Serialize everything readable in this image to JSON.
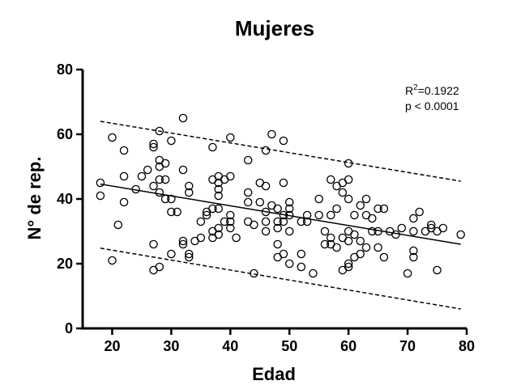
{
  "chart_data": {
    "type": "scatter",
    "title": "Mujeres",
    "xlabel": "Edad",
    "ylabel": "N° de rep.",
    "xlim": [
      15,
      80
    ],
    "ylim": [
      0,
      80
    ],
    "x_ticks": [
      20,
      30,
      40,
      50,
      60,
      70,
      80
    ],
    "y_ticks": [
      0,
      20,
      40,
      60,
      80
    ],
    "grid": false,
    "annotation": {
      "r2_prefix": "R",
      "r2_sup": "2",
      "r2_value": "=0.1922",
      "p_text": "p < 0.0001"
    },
    "regression": {
      "fit": {
        "x": [
          18,
          79
        ],
        "y": [
          44.6,
          26.0
        ]
      },
      "upper_band": {
        "x": [
          18,
          79
        ],
        "y": [
          64.0,
          45.5
        ]
      },
      "lower_band": {
        "x": [
          18,
          79
        ],
        "y": [
          24.8,
          6.0
        ]
      }
    },
    "points": [
      [
        18,
        45
      ],
      [
        18,
        41
      ],
      [
        20,
        59
      ],
      [
        20,
        21
      ],
      [
        21,
        32
      ],
      [
        22,
        55
      ],
      [
        22,
        47
      ],
      [
        22,
        39
      ],
      [
        24,
        43
      ],
      [
        25,
        47
      ],
      [
        26,
        49
      ],
      [
        27,
        57
      ],
      [
        27,
        56
      ],
      [
        27,
        44
      ],
      [
        27,
        26
      ],
      [
        27,
        18
      ],
      [
        28,
        61
      ],
      [
        28,
        52
      ],
      [
        28,
        50
      ],
      [
        28,
        46
      ],
      [
        28,
        42
      ],
      [
        28,
        19
      ],
      [
        29,
        51
      ],
      [
        29,
        46
      ],
      [
        29,
        40
      ],
      [
        30,
        58
      ],
      [
        30,
        40
      ],
      [
        30,
        36
      ],
      [
        30,
        23
      ],
      [
        31,
        36
      ],
      [
        32,
        65
      ],
      [
        32,
        49
      ],
      [
        32,
        27
      ],
      [
        32,
        26
      ],
      [
        33,
        44
      ],
      [
        33,
        42
      ],
      [
        33,
        23
      ],
      [
        33,
        22
      ],
      [
        34,
        27
      ],
      [
        35,
        33
      ],
      [
        35,
        28
      ],
      [
        36,
        36
      ],
      [
        36,
        35
      ],
      [
        37,
        56
      ],
      [
        37,
        46
      ],
      [
        37,
        37
      ],
      [
        37,
        30
      ],
      [
        37,
        28
      ],
      [
        38,
        47
      ],
      [
        38,
        45
      ],
      [
        38,
        43
      ],
      [
        38,
        41
      ],
      [
        38,
        37
      ],
      [
        38,
        31
      ],
      [
        38,
        29
      ],
      [
        39,
        46
      ],
      [
        39,
        33
      ],
      [
        40,
        59
      ],
      [
        40,
        47
      ],
      [
        40,
        35
      ],
      [
        40,
        33
      ],
      [
        40,
        31
      ],
      [
        41,
        28
      ],
      [
        43,
        52
      ],
      [
        43,
        42
      ],
      [
        43,
        39
      ],
      [
        43,
        33
      ],
      [
        44,
        32
      ],
      [
        44,
        17
      ],
      [
        45,
        45
      ],
      [
        45,
        39
      ],
      [
        46,
        55
      ],
      [
        46,
        44
      ],
      [
        46,
        36
      ],
      [
        46,
        33
      ],
      [
        46,
        30
      ],
      [
        47,
        60
      ],
      [
        47,
        38
      ],
      [
        48,
        37
      ],
      [
        48,
        33
      ],
      [
        48,
        31
      ],
      [
        48,
        26
      ],
      [
        48,
        22
      ],
      [
        49,
        58
      ],
      [
        49,
        45
      ],
      [
        49,
        35
      ],
      [
        49,
        33
      ],
      [
        49,
        23
      ],
      [
        50,
        39
      ],
      [
        50,
        37
      ],
      [
        50,
        35
      ],
      [
        50,
        30
      ],
      [
        50,
        20
      ],
      [
        52,
        33
      ],
      [
        52,
        23
      ],
      [
        52,
        19
      ],
      [
        53,
        35
      ],
      [
        53,
        33
      ],
      [
        54,
        17
      ],
      [
        55,
        40
      ],
      [
        55,
        35
      ],
      [
        56,
        30
      ],
      [
        56,
        26
      ],
      [
        57,
        46
      ],
      [
        57,
        35
      ],
      [
        57,
        28
      ],
      [
        57,
        26
      ],
      [
        58,
        44
      ],
      [
        58,
        37
      ],
      [
        58,
        25
      ],
      [
        59,
        45
      ],
      [
        59,
        42
      ],
      [
        59,
        28
      ],
      [
        59,
        18
      ],
      [
        60,
        51
      ],
      [
        60,
        46
      ],
      [
        60,
        40
      ],
      [
        60,
        30
      ],
      [
        60,
        27
      ],
      [
        60,
        20
      ],
      [
        60,
        19
      ],
      [
        61,
        35
      ],
      [
        61,
        29
      ],
      [
        61,
        22
      ],
      [
        62,
        38
      ],
      [
        62,
        27
      ],
      [
        62,
        23
      ],
      [
        63,
        40
      ],
      [
        63,
        35
      ],
      [
        63,
        25
      ],
      [
        64,
        34
      ],
      [
        64,
        30
      ],
      [
        65,
        37
      ],
      [
        65,
        30
      ],
      [
        65,
        25
      ],
      [
        66,
        37
      ],
      [
        66,
        22
      ],
      [
        67,
        30
      ],
      [
        68,
        29
      ],
      [
        69,
        31
      ],
      [
        70,
        17
      ],
      [
        71,
        34
      ],
      [
        71,
        30
      ],
      [
        71,
        24
      ],
      [
        71,
        22
      ],
      [
        72,
        36
      ],
      [
        73,
        30
      ],
      [
        74,
        32
      ],
      [
        74,
        31
      ],
      [
        75,
        18
      ],
      [
        75,
        30
      ],
      [
        76,
        31
      ],
      [
        79,
        29
      ]
    ]
  }
}
